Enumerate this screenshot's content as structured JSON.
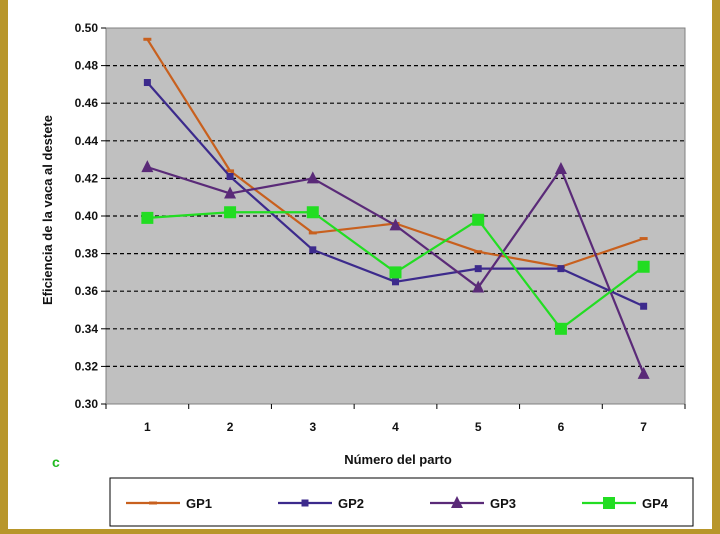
{
  "chart_data": {
    "type": "line",
    "panel_label": "c",
    "xlabel": "Número del parto",
    "ylabel": "Eficiencia de la vaca al destete",
    "categories": [
      "1",
      "2",
      "3",
      "4",
      "5",
      "6",
      "7"
    ],
    "ylim": [
      0.3,
      0.5
    ],
    "yticks": [
      "0.30",
      "0.32",
      "0.34",
      "0.36",
      "0.38",
      "0.40",
      "0.42",
      "0.44",
      "0.46",
      "0.48",
      "0.50"
    ],
    "grid": true,
    "legend_position": "bottom",
    "plot_background": "#c0c0c0",
    "series": [
      {
        "name": "GP1",
        "color": "#c8601e",
        "marker": "dash",
        "values": [
          0.494,
          0.424,
          0.391,
          0.396,
          0.381,
          0.373,
          0.388
        ]
      },
      {
        "name": "GP2",
        "color": "#3c2a8c",
        "marker": "square",
        "values": [
          0.471,
          0.421,
          0.382,
          0.365,
          0.372,
          0.372,
          0.352
        ]
      },
      {
        "name": "GP3",
        "color": "#5a2a78",
        "marker": "triangle",
        "values": [
          0.426,
          0.412,
          0.42,
          0.395,
          0.362,
          0.425,
          0.316
        ]
      },
      {
        "name": "GP4",
        "color": "#22dd22",
        "marker": "square-large",
        "values": [
          0.399,
          0.402,
          0.402,
          0.37,
          0.398,
          0.34,
          0.373
        ]
      }
    ]
  }
}
